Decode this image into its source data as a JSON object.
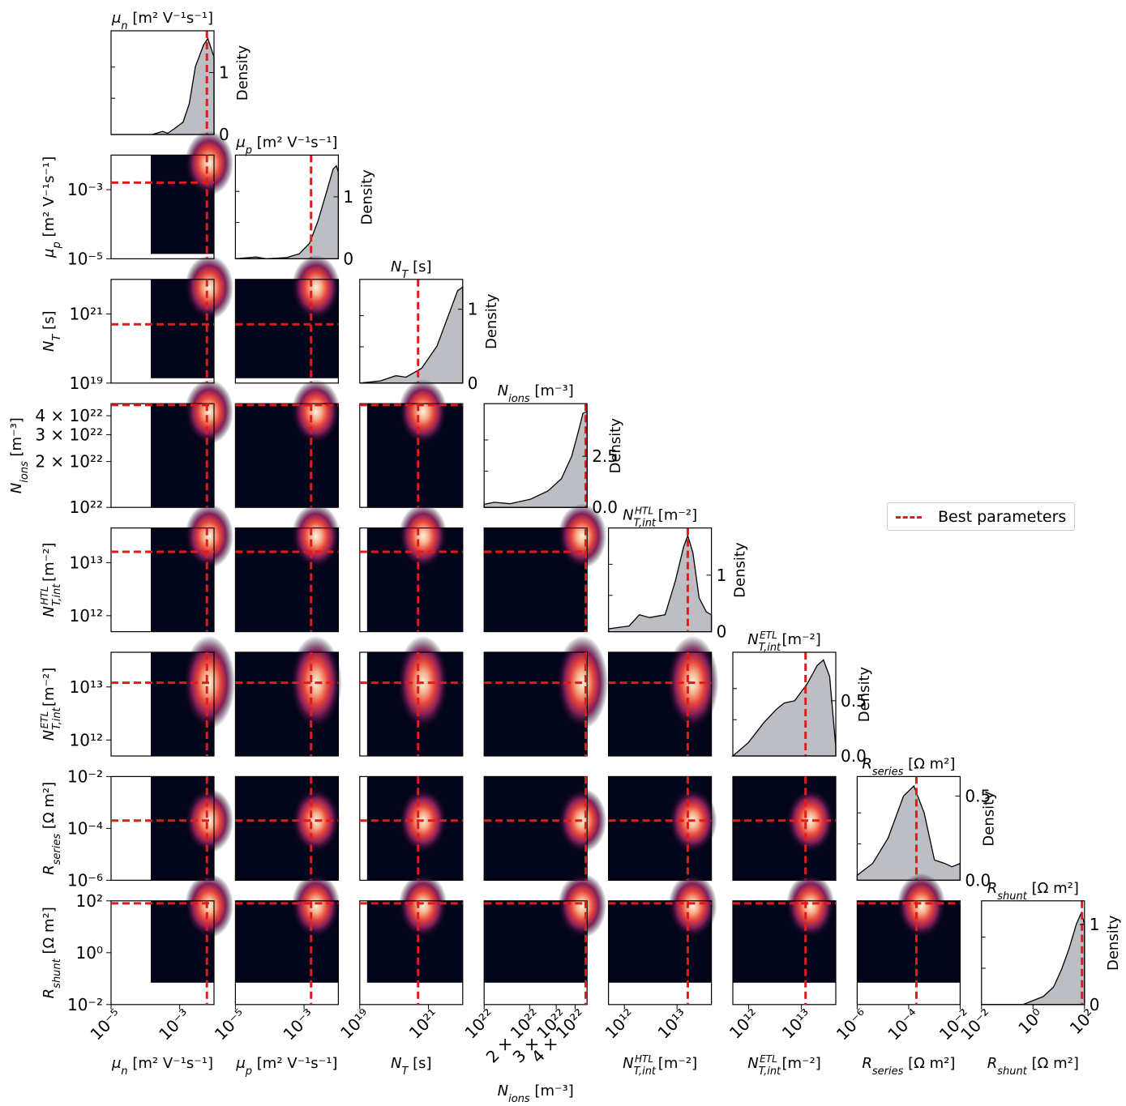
{
  "chart_data": {
    "type": "heatmap",
    "title": "",
    "parameters": [
      {
        "label": "μ_n [m² V⁻¹s⁻¹]",
        "scale": "log",
        "range": [
          1e-05,
          0.01
        ],
        "ticks": [
          [
            "10⁻⁵",
            1e-05
          ],
          [
            "10⁻³",
            0.001
          ]
        ],
        "best": 0.0062
      },
      {
        "label": "μ_p [m² V⁻¹s⁻¹]",
        "scale": "log",
        "range": [
          1e-05,
          0.01
        ],
        "ticks": [
          [
            "10⁻⁵",
            1e-05
          ],
          [
            "10⁻³",
            0.001
          ]
        ],
        "best": 0.0016
      },
      {
        "label": "N_T [s]",
        "scale": "log",
        "range": [
          1e+19,
          1e+22
        ],
        "ticks": [
          [
            "10¹⁹",
            1e+19
          ],
          [
            "10²¹",
            1e+21
          ]
        ],
        "best": 5e+20
      },
      {
        "label": "N_ions [m⁻³]",
        "scale": "log",
        "range": [
          1e+22,
          4.8e+22
        ],
        "ticks": [
          [
            "10²²",
            1e+22
          ],
          [
            "2 × 10²²",
            2e+22
          ],
          [
            "3 × 10²²",
            3e+22
          ],
          [
            "4 × 10²²",
            4e+22
          ]
        ],
        "best": 4.7e+22
      },
      {
        "label": "N_T,int^HTL [m⁻²]",
        "scale": "log",
        "range": [
          500000000000.0,
          45000000000000.0
        ],
        "ticks": [
          [
            "10¹²",
            1000000000000.0
          ],
          [
            "10¹³",
            10000000000000.0
          ]
        ],
        "best": 16000000000000.0
      },
      {
        "label": "N_T,int^ETL [m⁻²]",
        "scale": "log",
        "range": [
          500000000000.0,
          45000000000000.0
        ],
        "ticks": [
          [
            "10¹²",
            1000000000000.0
          ],
          [
            "10¹³",
            10000000000000.0
          ]
        ],
        "best": 12000000000000.0
      },
      {
        "label": "R_series [Ω m²]",
        "scale": "log",
        "range": [
          1e-06,
          0.01
        ],
        "ticks": [
          [
            "10⁻⁶",
            1e-06
          ],
          [
            "10⁻⁴",
            0.0001
          ],
          [
            "10⁻²",
            0.01
          ]
        ],
        "best": 0.0002
      },
      {
        "label": "R_shunt [Ω m²]",
        "scale": "log",
        "range": [
          0.01,
          100
        ],
        "ticks": [
          [
            "10⁻²",
            0.01
          ],
          [
            "10⁰",
            1
          ],
          [
            "10²",
            100
          ]
        ],
        "best": 80
      }
    ],
    "density_axis_label": "Density",
    "density_ticks": [
      [
        [
          "0",
          0
        ],
        [
          "1",
          1
        ]
      ],
      [
        [
          "0",
          0
        ],
        [
          "1",
          1
        ]
      ],
      [
        [
          "0",
          0
        ],
        [
          "1",
          1
        ]
      ],
      [
        [
          "0.0",
          0
        ],
        [
          "2.5",
          2.5
        ]
      ],
      [
        [
          "0",
          0
        ],
        [
          "1",
          1
        ]
      ],
      [
        [
          "0.0",
          0
        ],
        [
          "0.5",
          0.5
        ]
      ],
      [
        [
          "0.0",
          0
        ],
        [
          "0.5",
          0.5
        ]
      ],
      [
        [
          "0",
          0
        ],
        [
          "1",
          1
        ]
      ]
    ],
    "density_max": [
      1.55,
      1.55,
      1.3,
      4.7,
      1.7,
      0.87,
      0.57,
      1.2
    ],
    "marginals": [
      [
        [
          0.0,
          0.0
        ],
        [
          0.4,
          0.0
        ],
        [
          0.5,
          0.05
        ],
        [
          0.55,
          0.02
        ],
        [
          0.62,
          0.1
        ],
        [
          0.7,
          0.2
        ],
        [
          0.76,
          0.5
        ],
        [
          0.82,
          1.1
        ],
        [
          0.9,
          1.45
        ],
        [
          0.94,
          1.55
        ],
        [
          0.97,
          1.4
        ],
        [
          1.0,
          1.25
        ]
      ],
      [
        [
          0.0,
          0.0
        ],
        [
          0.2,
          0.03
        ],
        [
          0.3,
          0.0
        ],
        [
          0.5,
          0.02
        ],
        [
          0.62,
          0.08
        ],
        [
          0.72,
          0.25
        ],
        [
          0.8,
          0.6
        ],
        [
          0.88,
          1.05
        ],
        [
          0.95,
          1.45
        ],
        [
          0.98,
          1.5
        ],
        [
          1.0,
          1.4
        ]
      ],
      [
        [
          0.0,
          0.0
        ],
        [
          0.2,
          0.03
        ],
        [
          0.35,
          0.1
        ],
        [
          0.45,
          0.08
        ],
        [
          0.6,
          0.2
        ],
        [
          0.75,
          0.5
        ],
        [
          0.87,
          0.95
        ],
        [
          0.95,
          1.25
        ],
        [
          1.0,
          1.3
        ]
      ],
      [
        [
          0.0,
          0.15
        ],
        [
          0.1,
          0.25
        ],
        [
          0.25,
          0.18
        ],
        [
          0.45,
          0.4
        ],
        [
          0.62,
          0.8
        ],
        [
          0.75,
          1.4
        ],
        [
          0.85,
          2.5
        ],
        [
          0.92,
          3.8
        ],
        [
          0.96,
          4.6
        ],
        [
          1.0,
          4.7
        ]
      ],
      [
        [
          0.0,
          0.05
        ],
        [
          0.2,
          0.1
        ],
        [
          0.3,
          0.3
        ],
        [
          0.4,
          0.25
        ],
        [
          0.55,
          0.3
        ],
        [
          0.65,
          0.9
        ],
        [
          0.73,
          1.5
        ],
        [
          0.77,
          1.7
        ],
        [
          0.82,
          1.4
        ],
        [
          0.88,
          0.6
        ],
        [
          0.95,
          0.35
        ],
        [
          1.0,
          0.3
        ]
      ],
      [
        [
          0.0,
          0.0
        ],
        [
          0.15,
          0.12
        ],
        [
          0.3,
          0.3
        ],
        [
          0.42,
          0.42
        ],
        [
          0.5,
          0.48
        ],
        [
          0.6,
          0.5
        ],
        [
          0.72,
          0.65
        ],
        [
          0.82,
          0.82
        ],
        [
          0.88,
          0.87
        ],
        [
          0.94,
          0.72
        ],
        [
          1.0,
          0.08
        ]
      ],
      [
        [
          0.0,
          0.03
        ],
        [
          0.15,
          0.1
        ],
        [
          0.3,
          0.25
        ],
        [
          0.45,
          0.5
        ],
        [
          0.55,
          0.56
        ],
        [
          0.65,
          0.4
        ],
        [
          0.75,
          0.12
        ],
        [
          0.85,
          0.1
        ],
        [
          0.92,
          0.08
        ],
        [
          1.0,
          0.1
        ]
      ],
      [
        [
          0.0,
          0.0
        ],
        [
          0.4,
          0.0
        ],
        [
          0.5,
          0.05
        ],
        [
          0.6,
          0.1
        ],
        [
          0.7,
          0.22
        ],
        [
          0.78,
          0.45
        ],
        [
          0.85,
          0.7
        ],
        [
          0.92,
          1.0
        ],
        [
          0.97,
          1.15
        ],
        [
          1.0,
          1.0
        ]
      ]
    ],
    "colors": {
      "best_line": "#e31a1c",
      "kde_fill": "#bcbec4",
      "heat_low": "#03051a",
      "heat_high": "#faebdd"
    },
    "legend": {
      "label": "Best parameters",
      "location": "right"
    }
  }
}
